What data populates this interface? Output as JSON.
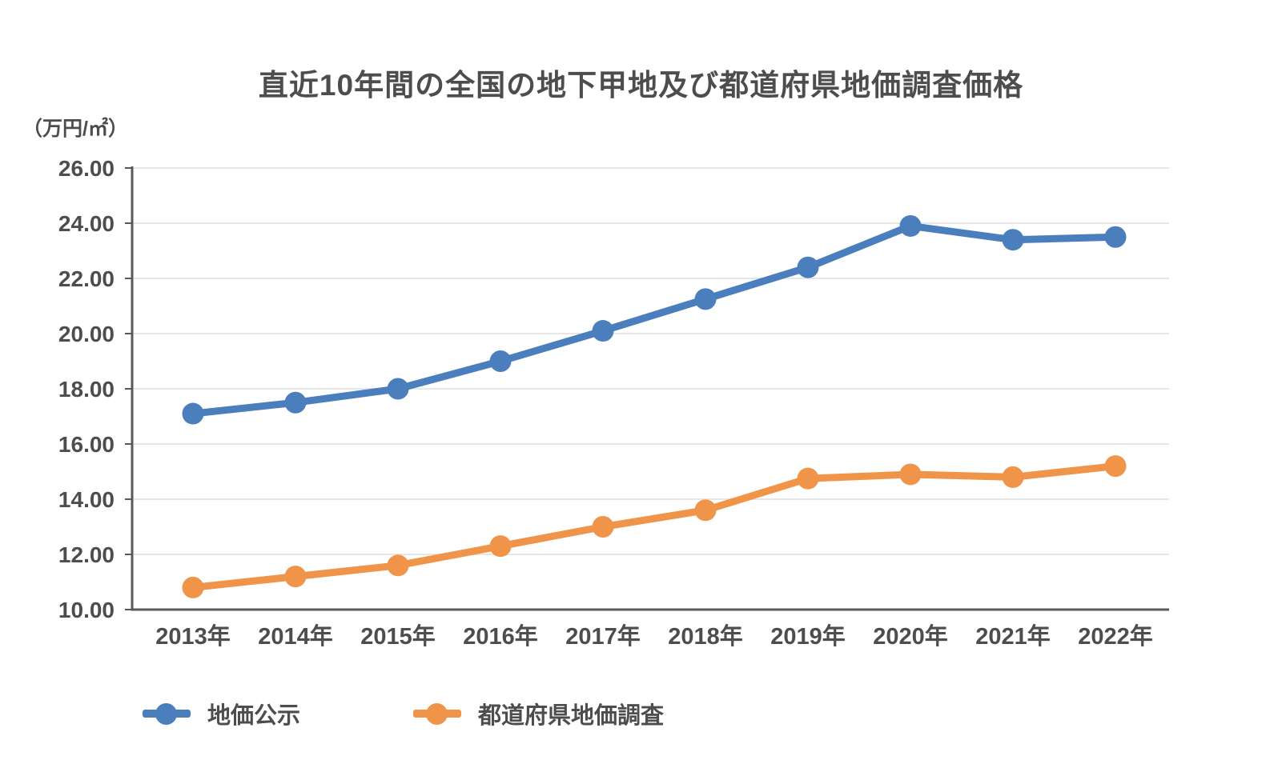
{
  "chart": {
    "title": "直近10年間の全国の地下甲地及び都道府県地価調査価格",
    "unit_label": "（万円/㎡）"
  },
  "chart_data": {
    "type": "line",
    "title": "直近10年間の全国の地下甲地及び都道府県地価調査価格",
    "ylabel": "万円/㎡",
    "xlabel": "",
    "categories": [
      "2013年",
      "2014年",
      "2015年",
      "2016年",
      "2017年",
      "2018年",
      "2019年",
      "2020年",
      "2021年",
      "2022年"
    ],
    "series": [
      {
        "name": "地価公示",
        "color": "#4a7ebd",
        "values": [
          17.1,
          17.5,
          18.0,
          19.0,
          20.1,
          21.25,
          22.4,
          23.9,
          23.4,
          23.5
        ]
      },
      {
        "name": "都道府県地価調査",
        "color": "#f0944a",
        "values": [
          10.8,
          11.2,
          11.6,
          12.3,
          13.0,
          13.6,
          14.75,
          14.9,
          14.8,
          15.2
        ]
      }
    ],
    "y_ticks": [
      "26.00",
      "24.00",
      "22.00",
      "20.00",
      "18.00",
      "16.00",
      "14.00",
      "12.00",
      "10.00"
    ],
    "ylim": [
      10,
      26
    ],
    "grid": true,
    "legend_position": "bottom-left",
    "colors": {
      "grid": "#e7e7e7",
      "axis": "#595959",
      "tick_text": "#4d4d4d"
    }
  }
}
